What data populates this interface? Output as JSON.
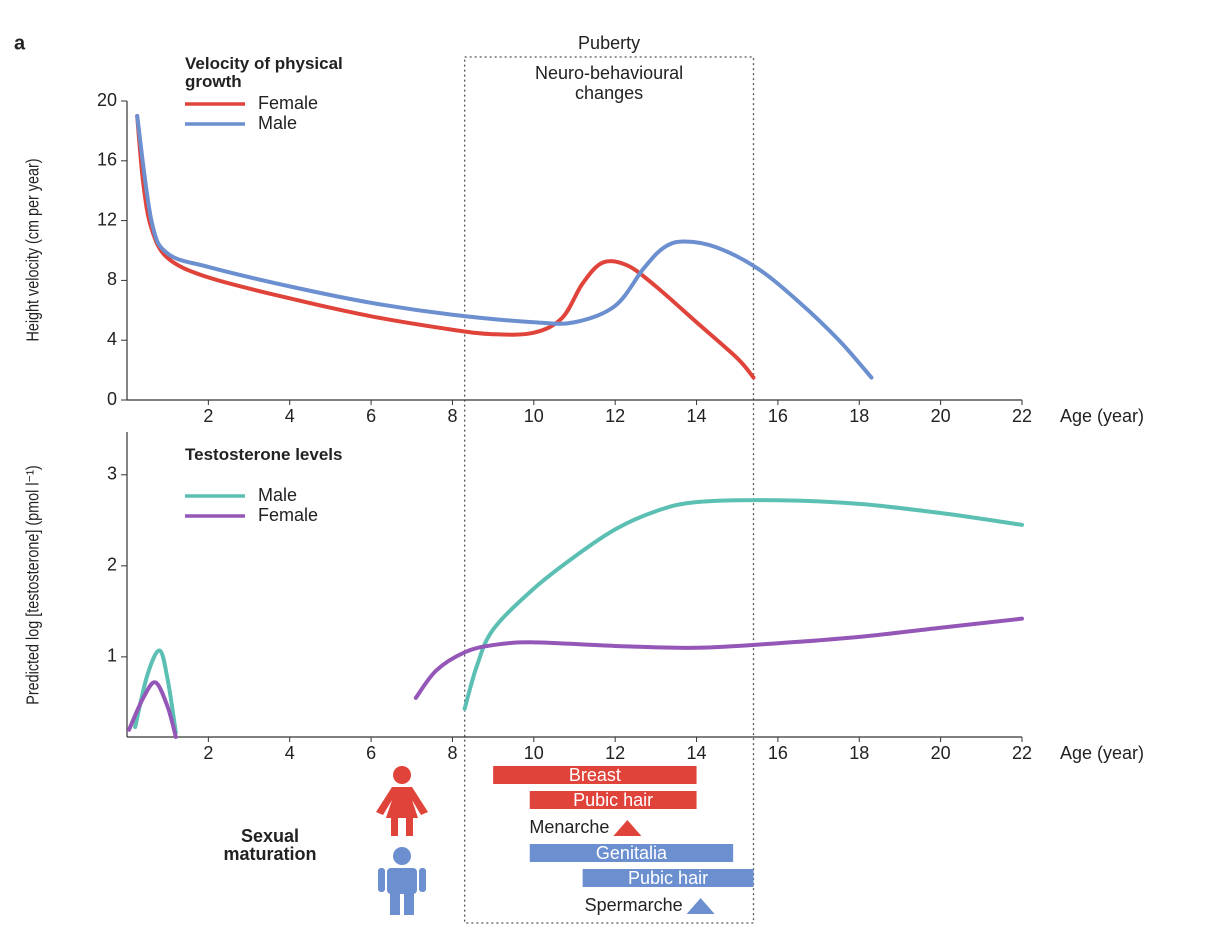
{
  "figure_label": "a",
  "puberty": {
    "label": "Puberty",
    "note": "Neuro-behavioural changes",
    "start": 8.3,
    "end": 15.4
  },
  "chart_data": [
    {
      "type": "line",
      "title": "Velocity of physical growth",
      "y_label": "Height velocity (cm per year)",
      "x_label": "Age (year)",
      "xlim": [
        0,
        22
      ],
      "xticks": [
        2,
        4,
        6,
        8,
        10,
        12,
        14,
        16,
        18,
        20,
        22
      ],
      "ylim": [
        0,
        20
      ],
      "yticks": [
        0,
        4,
        8,
        12,
        16,
        20
      ],
      "series": [
        {
          "name": "Female",
          "color": "#e0433a",
          "x": [
            0.25,
            0.4,
            0.6,
            1,
            2,
            4,
            6,
            8,
            9,
            10,
            10.7,
            11.2,
            11.7,
            12.3,
            13,
            14,
            15,
            15.4
          ],
          "values": [
            19,
            14.5,
            11.5,
            9.5,
            8.2,
            6.8,
            5.6,
            4.7,
            4.4,
            4.5,
            5.5,
            7.8,
            9.2,
            9,
            7.6,
            5.2,
            2.8,
            1.5
          ]
        },
        {
          "name": "Male",
          "color": "#6b8fcf",
          "x": [
            0.25,
            0.6,
            1,
            2,
            4,
            6,
            8,
            10,
            11,
            12,
            12.7,
            13.2,
            13.7,
            14.5,
            15.5,
            16.5,
            17.5,
            18.3
          ],
          "values": [
            19,
            12,
            9.8,
            8.9,
            7.6,
            6.5,
            5.7,
            5.2,
            5.2,
            6.3,
            8.8,
            10.2,
            10.6,
            10.2,
            8.8,
            6.6,
            4,
            1.5
          ]
        }
      ]
    },
    {
      "type": "line",
      "title": "Testosterone levels",
      "y_label": "Predicted log [testosterone] (pmol l⁻¹)",
      "x_label": "Age (year)",
      "xlim": [
        0,
        22
      ],
      "xticks": [
        2,
        4,
        6,
        8,
        10,
        12,
        14,
        16,
        18,
        20,
        22
      ],
      "ylim": [
        0.12,
        3.47
      ],
      "yticks": [
        1,
        2,
        3
      ],
      "series": [
        {
          "name": "Male",
          "color": "#5cbfb3",
          "x": [
            0.2,
            0.5,
            0.8,
            1.0,
            1.2,
            null,
            8.3,
            8.6,
            9,
            10,
            11,
            12,
            13,
            14,
            16,
            18,
            20,
            22
          ],
          "values": [
            0.23,
            0.8,
            1.07,
            0.75,
            0.17,
            null,
            0.43,
            0.9,
            1.3,
            1.75,
            2.1,
            2.4,
            2.6,
            2.7,
            2.72,
            2.68,
            2.58,
            2.45
          ]
        },
        {
          "name": "Female",
          "color": "#9457b8",
          "x": [
            0.05,
            0.4,
            0.7,
            1.0,
            1.2,
            null,
            7.1,
            7.6,
            8.3,
            9,
            10,
            12,
            14,
            16,
            18,
            20,
            22
          ],
          "values": [
            0.2,
            0.55,
            0.72,
            0.45,
            0.12,
            null,
            0.55,
            0.85,
            1.05,
            1.13,
            1.16,
            1.12,
            1.1,
            1.15,
            1.22,
            1.32,
            1.42
          ]
        }
      ]
    },
    {
      "type": "range",
      "title": "Sexual maturation",
      "xlim": [
        0,
        22
      ],
      "groups": [
        {
          "color": "#e0433a",
          "bars": [
            {
              "label": "Breast",
              "start": 9.0,
              "end": 14.0
            },
            {
              "label": "Pubic hair",
              "start": 9.9,
              "end": 14.0
            }
          ],
          "event": {
            "label": "Menarche",
            "x": 12.3
          }
        },
        {
          "color": "#6b8fcf",
          "bars": [
            {
              "label": "Genitalia",
              "start": 9.9,
              "end": 14.9
            },
            {
              "label": "Pubic hair",
              "start": 11.2,
              "end": 15.4
            }
          ],
          "event": {
            "label": "Spermarche",
            "x": 14.1
          }
        }
      ]
    }
  ]
}
